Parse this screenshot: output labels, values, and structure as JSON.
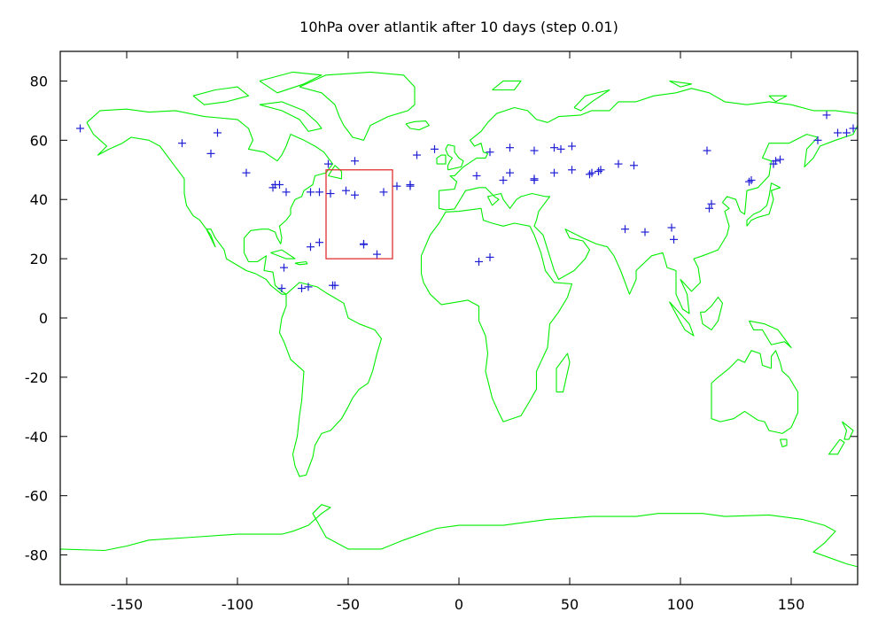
{
  "chart_data": {
    "type": "scatter",
    "title": "10hPa over atlantik after 10 days (step 0.01)",
    "xlabel": "",
    "ylabel": "",
    "xlim": [
      -180,
      180
    ],
    "ylim": [
      -90,
      90
    ],
    "xticks": [
      -150,
      -100,
      -50,
      0,
      50,
      100,
      150
    ],
    "yticks": [
      80,
      60,
      40,
      20,
      0,
      -20,
      -40,
      -60,
      -80
    ],
    "grid": false,
    "colors": {
      "coastline": "#00ee00",
      "points": "#1f1fd6",
      "box": "#e02020",
      "frame": "#000000"
    },
    "region_box": {
      "lon": [
        -60,
        -30
      ],
      "lat": [
        20,
        50
      ]
    },
    "points": [
      [
        -171,
        64
      ],
      [
        -125,
        59
      ],
      [
        -112,
        55.5
      ],
      [
        -109,
        62.5
      ],
      [
        -96,
        49
      ],
      [
        -84,
        44
      ],
      [
        -83,
        45
      ],
      [
        -81,
        45
      ],
      [
        -80,
        10
      ],
      [
        -79,
        17
      ],
      [
        -78,
        42.5
      ],
      [
        -71,
        10
      ],
      [
        -68,
        10.5
      ],
      [
        -67,
        42.5
      ],
      [
        -67,
        24
      ],
      [
        -63,
        42.5
      ],
      [
        -63,
        25.5
      ],
      [
        -59,
        52
      ],
      [
        -58,
        42
      ],
      [
        -57,
        11
      ],
      [
        -56,
        11
      ],
      [
        -51,
        43
      ],
      [
        -47,
        41.5
      ],
      [
        -47,
        53
      ],
      [
        -43,
        25
      ],
      [
        -43,
        24.8
      ],
      [
        -37,
        21.5
      ],
      [
        -34,
        42.5
      ],
      [
        -28,
        44.5
      ],
      [
        -22,
        44.5
      ],
      [
        -22,
        45
      ],
      [
        -19,
        55
      ],
      [
        -11,
        57
      ],
      [
        8,
        48
      ],
      [
        9,
        19
      ],
      [
        14,
        20.5
      ],
      [
        14,
        56
      ],
      [
        20,
        46.5
      ],
      [
        23,
        57.5
      ],
      [
        23,
        49
      ],
      [
        34,
        56.5
      ],
      [
        34,
        46.5
      ],
      [
        34,
        47
      ],
      [
        43,
        49
      ],
      [
        43,
        57.5
      ],
      [
        46,
        57
      ],
      [
        51,
        50
      ],
      [
        51,
        58
      ],
      [
        59,
        48.5
      ],
      [
        60,
        49
      ],
      [
        63,
        49.5
      ],
      [
        64,
        50
      ],
      [
        72,
        52
      ],
      [
        79,
        51.5
      ],
      [
        75,
        30
      ],
      [
        84,
        29
      ],
      [
        96,
        30.5
      ],
      [
        97,
        26.5
      ],
      [
        112,
        56.5
      ],
      [
        113,
        37
      ],
      [
        114,
        38.5
      ],
      [
        131,
        46
      ],
      [
        132,
        46.5
      ],
      [
        142,
        52
      ],
      [
        143,
        53
      ],
      [
        145,
        53.5
      ],
      [
        162,
        60
      ],
      [
        166,
        68.5
      ],
      [
        171,
        62.5
      ],
      [
        175,
        62.5
      ],
      [
        178,
        64
      ]
    ]
  }
}
